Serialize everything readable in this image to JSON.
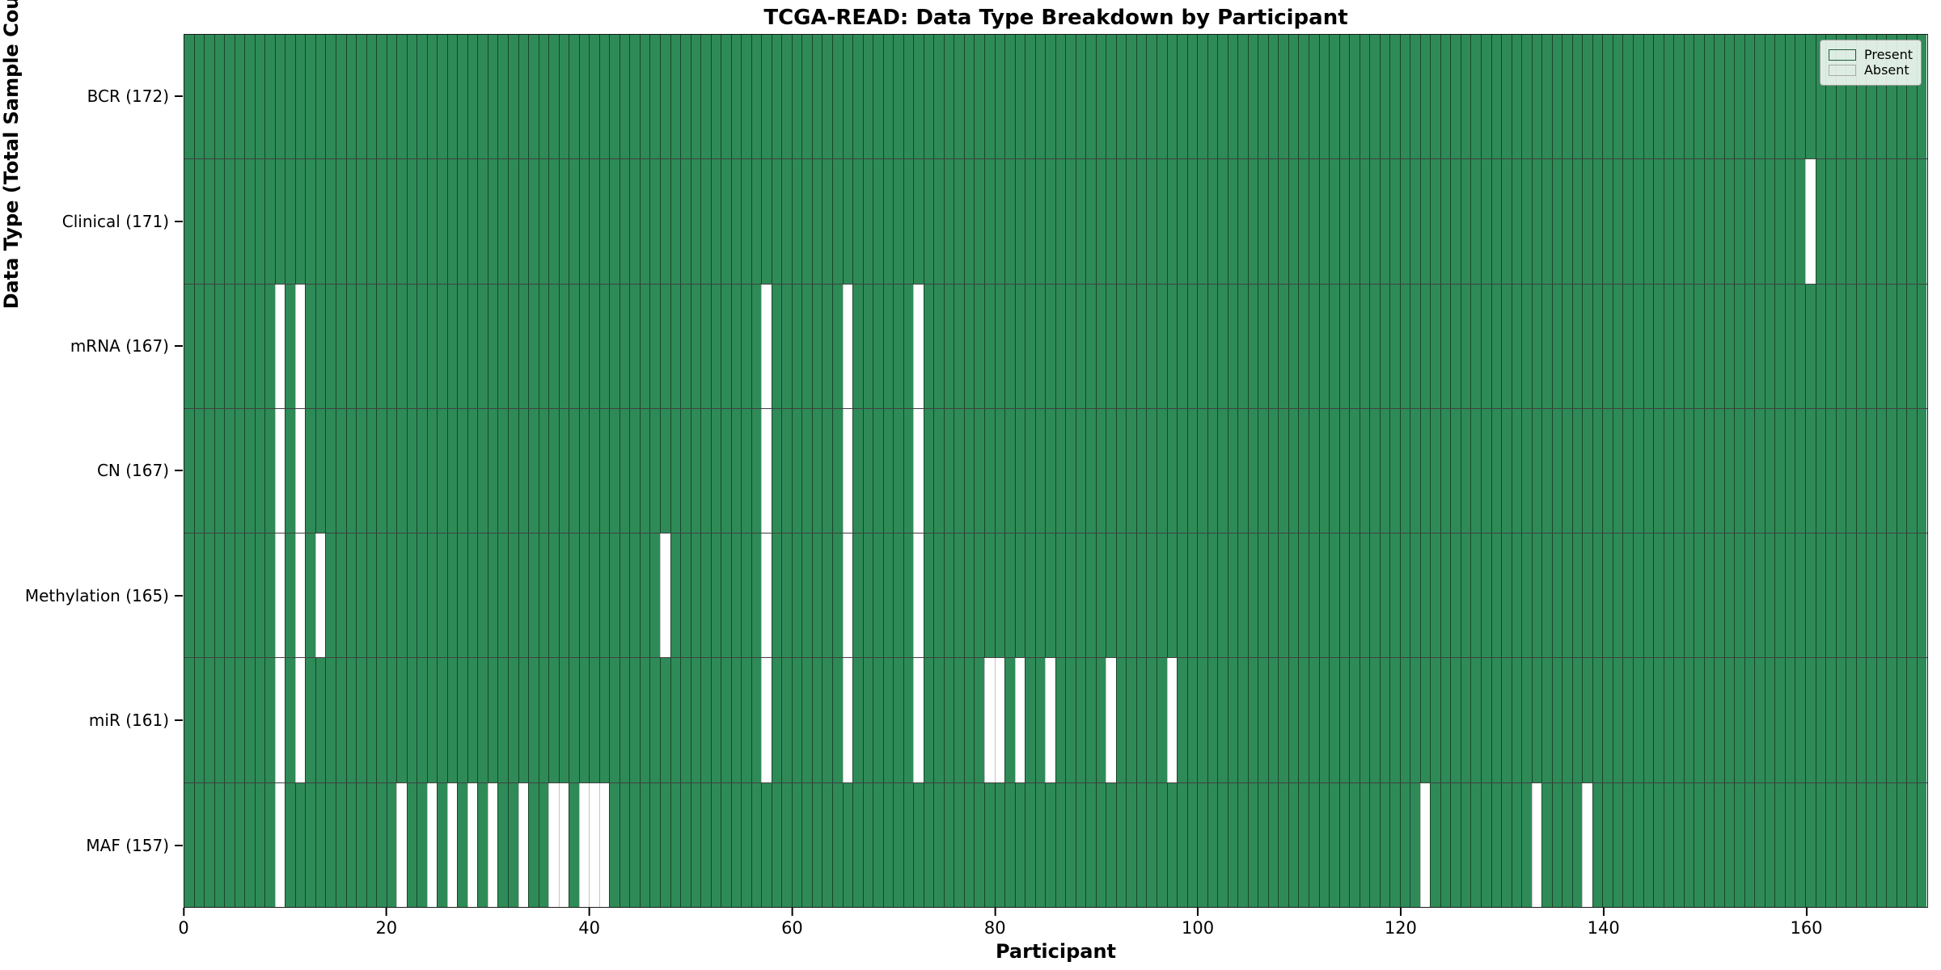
{
  "title": "TCGA-READ: Data Type Breakdown by Participant",
  "axes": {
    "xlabel": "Participant",
    "ylabel": "Data Type (Total Sample Count)"
  },
  "legend": {
    "present_label": "Present",
    "absent_label": "Absent"
  },
  "colors": {
    "present": "#2e8b57",
    "absent": "#ffffff",
    "present_cell_edge": "rgba(0,0,0,0.5)",
    "absent_cell_edge": "#c4c4c4",
    "row_divider": "rgba(0,0,0,0.75)",
    "figure_background": "#ffffff"
  },
  "chart_data": {
    "type": "heatmap",
    "title": "TCGA-READ: Data Type Breakdown by Participant",
    "xlabel": "Participant",
    "ylabel": "Data Type (Total Sample Count)",
    "n_participants": 172,
    "x_range": [
      0,
      172
    ],
    "x_ticks": [
      0,
      20,
      40,
      60,
      80,
      100,
      120,
      140,
      160
    ],
    "grid": "cell-edges",
    "legend_position": "upper right",
    "legend_entries": [
      {
        "label": "Present",
        "color": "#2e8b57"
      },
      {
        "label": "Absent",
        "color": "#ffffff"
      }
    ],
    "value_encoding": {
      "present": 1,
      "absent": 0
    },
    "rows": [
      {
        "data_type": "BCR",
        "total_samples": 172,
        "label": "BCR (172)",
        "absent_participants": []
      },
      {
        "data_type": "Clinical",
        "total_samples": 171,
        "label": "Clinical (171)",
        "absent_participants": [
          160
        ]
      },
      {
        "data_type": "mRNA",
        "total_samples": 167,
        "label": "mRNA (167)",
        "absent_participants": [
          9,
          11,
          57,
          65,
          72
        ]
      },
      {
        "data_type": "CN",
        "total_samples": 167,
        "label": "CN (167)",
        "absent_participants": [
          9,
          11,
          57,
          65,
          72
        ]
      },
      {
        "data_type": "Methylation",
        "total_samples": 165,
        "label": "Methylation (165)",
        "absent_participants": [
          9,
          11,
          13,
          47,
          57,
          65,
          72
        ]
      },
      {
        "data_type": "miR",
        "total_samples": 161,
        "label": "miR (161)",
        "absent_participants": [
          9,
          11,
          57,
          65,
          72,
          79,
          80,
          82,
          85,
          91,
          97
        ]
      },
      {
        "data_type": "MAF",
        "total_samples": 157,
        "label": "MAF (157)",
        "absent_participants": [
          9,
          21,
          24,
          26,
          28,
          30,
          33,
          36,
          37,
          39,
          40,
          41,
          122,
          133,
          138
        ]
      }
    ]
  }
}
